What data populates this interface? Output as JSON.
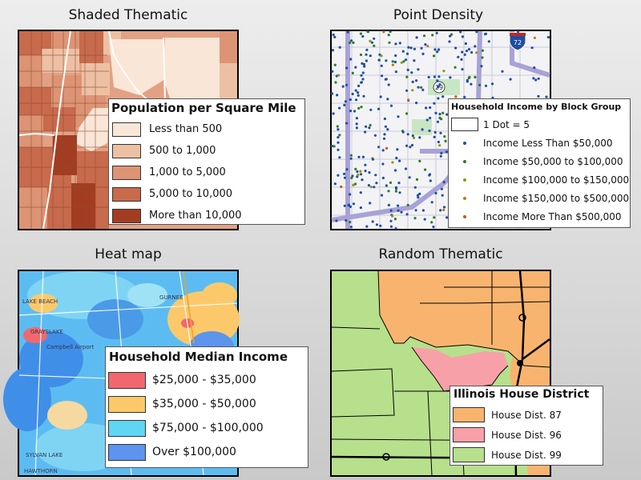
{
  "panels": {
    "shaded": {
      "title": "Shaded Thematic",
      "legend": {
        "title": "Population per Square Mile",
        "items": [
          {
            "label": "Less than 500",
            "color": "#f9e6d6"
          },
          {
            "label": "500 to 1,000",
            "color": "#edc0a4"
          },
          {
            "label": "1,000 to 5,000",
            "color": "#dd9474"
          },
          {
            "label": "5,000 to 10,000",
            "color": "#c86a4c"
          },
          {
            "label": "More than 10,000",
            "color": "#a33d22"
          }
        ]
      }
    },
    "density": {
      "title": "Point Density",
      "shield_label": "72",
      "route_label": "29",
      "legend": {
        "title": "Household Income by Block Group",
        "dot_label": "1 Dot = 5",
        "items": [
          {
            "label": "Income Less Than $50,000",
            "color": "#1f4fa6"
          },
          {
            "label": "Income $50,000 to $100,000",
            "color": "#2e7d1e"
          },
          {
            "label": "Income $100,000 to $150,000",
            "color": "#8a9a10"
          },
          {
            "label": "Income $150,000 to $500,000",
            "color": "#c07a10"
          },
          {
            "label": "Income More Than $500,000",
            "color": "#c05a10"
          }
        ]
      }
    },
    "heat": {
      "title": "Heat map",
      "places": [
        "LAKE BEACH",
        "GRAYSLAKE",
        "Campbell Airport",
        "GURNEE",
        "SYLVAN LAKE",
        "HAWTHORN"
      ],
      "legend": {
        "title": "Household Median Income",
        "items": [
          {
            "label": "$25,000 - $35,000",
            "color": "#f0686e"
          },
          {
            "label": "$35,000 - $50,000",
            "color": "#fcc96a"
          },
          {
            "label": "$75,000 - $100,000",
            "color": "#5fd6f2"
          },
          {
            "label": "Over $100,000",
            "color": "#5c94ee"
          }
        ]
      }
    },
    "random": {
      "title": "Random Thematic",
      "legend": {
        "title": "Illinois House District",
        "items": [
          {
            "label": "House Dist. 87",
            "color": "#f8b46e"
          },
          {
            "label": "House Dist. 96",
            "color": "#f8a0a8"
          },
          {
            "label": "House Dist. 99",
            "color": "#b6e08c"
          }
        ]
      }
    }
  }
}
